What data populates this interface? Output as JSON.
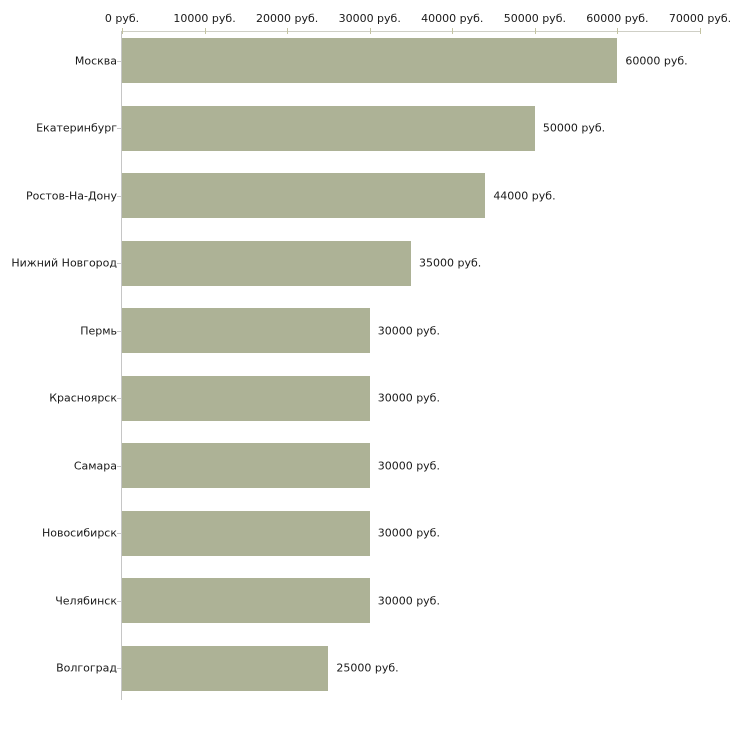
{
  "chart_data": {
    "type": "bar",
    "orientation": "horizontal",
    "title": "",
    "xlabel": "",
    "ylabel": "",
    "categories": [
      "Москва",
      "Екатеринбург",
      "Ростов-На-Дону",
      "Нижний Новгород",
      "Пермь",
      "Красноярск",
      "Самара",
      "Новосибирск",
      "Челябинск",
      "Волгоград"
    ],
    "values": [
      60000,
      50000,
      44000,
      35000,
      30000,
      30000,
      30000,
      30000,
      30000,
      25000
    ],
    "value_labels": [
      "60000 руб.",
      "50000 руб.",
      "44000 руб.",
      "35000 руб.",
      "30000 руб.",
      "30000 руб.",
      "30000 руб.",
      "30000 руб.",
      "30000 руб.",
      "25000 руб."
    ],
    "x_tick_values": [
      0,
      10000,
      20000,
      30000,
      40000,
      50000,
      60000,
      70000
    ],
    "x_tick_labels": [
      "0 руб.",
      "10000 руб.",
      "20000 руб.",
      "30000 руб.",
      "40000 руб.",
      "50000 руб.",
      "60000 руб.",
      "70000 руб."
    ],
    "xlim": [
      0,
      70000
    ],
    "grid": false,
    "legend": "none",
    "axis_position": "top",
    "colors": {
      "bar_fill": "#adb296",
      "axis_line": "#c6c6c6",
      "x_tick_mark": "#c3c3a1",
      "text": "#1a1a1a",
      "background": "#ffffff"
    }
  }
}
